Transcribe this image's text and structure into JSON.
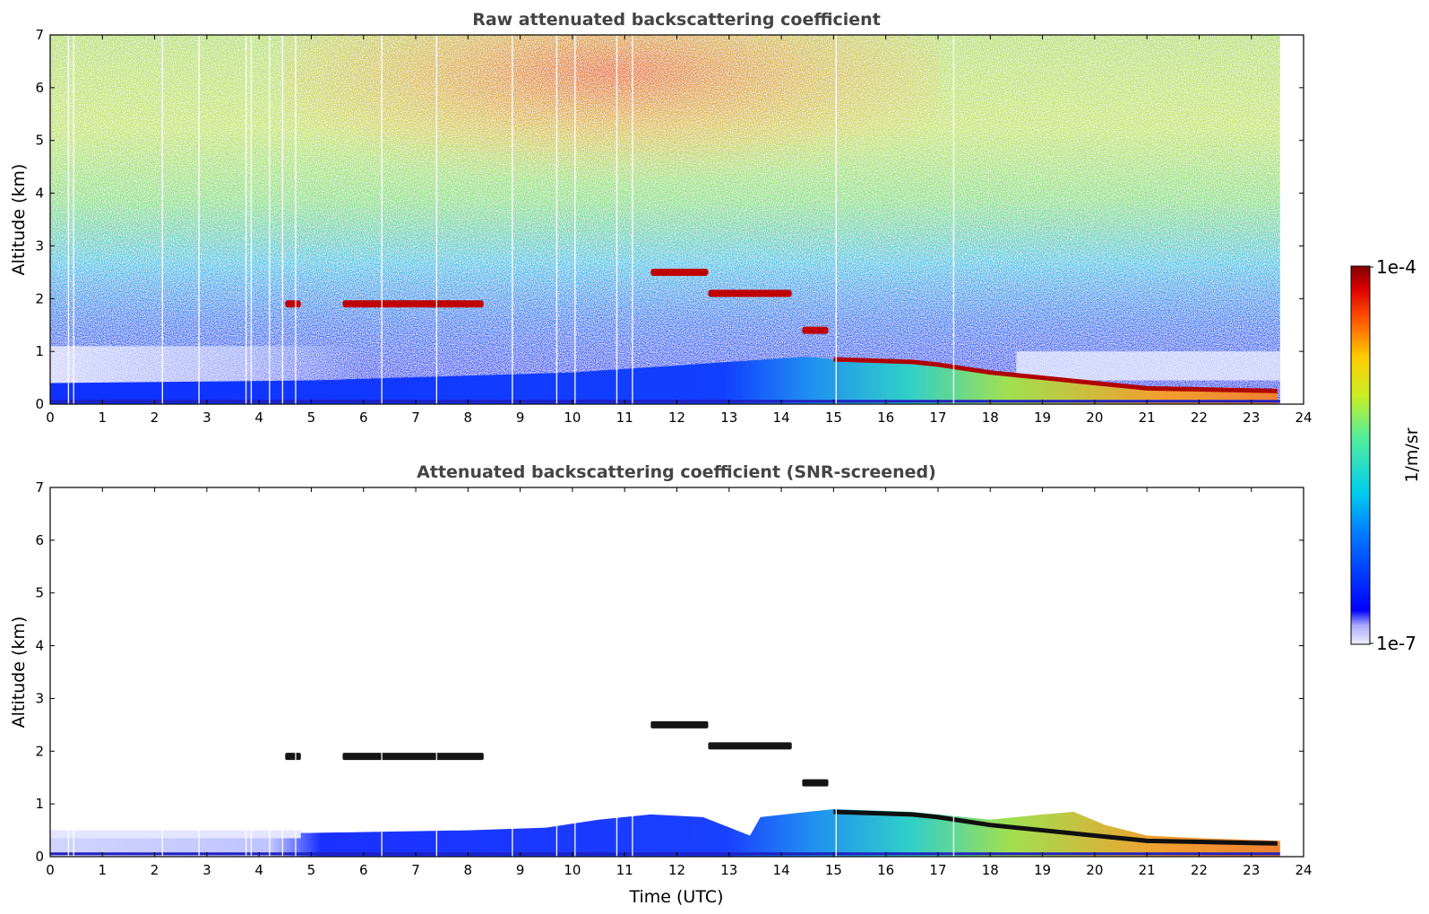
{
  "chart_data": [
    {
      "type": "heatmap",
      "title": "Raw attenuated backscattering coefficient",
      "xlabel": "",
      "ylabel": "Altitude (km)",
      "xlim": [
        0,
        24
      ],
      "ylim": [
        0,
        7
      ],
      "x_ticks": [
        "0",
        "1",
        "2",
        "3",
        "4",
        "5",
        "6",
        "7",
        "8",
        "9",
        "10",
        "11",
        "12",
        "13",
        "14",
        "15",
        "16",
        "17",
        "18",
        "19",
        "20",
        "21",
        "22",
        "23",
        "24"
      ],
      "y_ticks": [
        "0",
        "1",
        "2",
        "3",
        "4",
        "5",
        "6",
        "7"
      ],
      "data_end_time": 23.55,
      "boundary_layer_top_km": [
        [
          0,
          0.4
        ],
        [
          5,
          0.45
        ],
        [
          10,
          0.6
        ],
        [
          13,
          0.8
        ],
        [
          14.5,
          0.9
        ],
        [
          15,
          0.85
        ],
        [
          16.5,
          0.8
        ],
        [
          17,
          0.75
        ],
        [
          18,
          0.6
        ],
        [
          19,
          0.5
        ],
        [
          20,
          0.4
        ],
        [
          21,
          0.3
        ],
        [
          22,
          0.28
        ],
        [
          23.5,
          0.25
        ]
      ],
      "cloud_layers_km": [
        {
          "start": 4.5,
          "end": 4.8,
          "altitude": 1.9
        },
        {
          "start": 5.6,
          "end": 8.3,
          "altitude": 1.9
        },
        {
          "start": 11.5,
          "end": 12.6,
          "altitude": 2.5
        },
        {
          "start": 12.6,
          "end": 14.2,
          "altitude": 2.1
        },
        {
          "start": 14.4,
          "end": 14.9,
          "altitude": 1.4
        }
      ]
    },
    {
      "type": "heatmap",
      "title": "Attenuated backscattering coefficient (SNR-screened)",
      "xlabel": "Time (UTC)",
      "ylabel": "Altitude (km)",
      "xlim": [
        0,
        24
      ],
      "ylim": [
        0,
        7
      ],
      "x_ticks": [
        "0",
        "1",
        "2",
        "3",
        "4",
        "5",
        "6",
        "7",
        "8",
        "9",
        "10",
        "11",
        "12",
        "13",
        "14",
        "15",
        "16",
        "17",
        "18",
        "19",
        "20",
        "21",
        "22",
        "23",
        "24"
      ],
      "y_ticks": [
        "0",
        "1",
        "2",
        "3",
        "4",
        "5",
        "6",
        "7"
      ],
      "data_end_time": 23.55
    }
  ],
  "colorbar": {
    "label": "1/m/sr",
    "max_label": "1e-4",
    "min_label": "1e-7",
    "colormap": "jet",
    "min_color": "#eeeeff",
    "max_color": "#800000"
  }
}
